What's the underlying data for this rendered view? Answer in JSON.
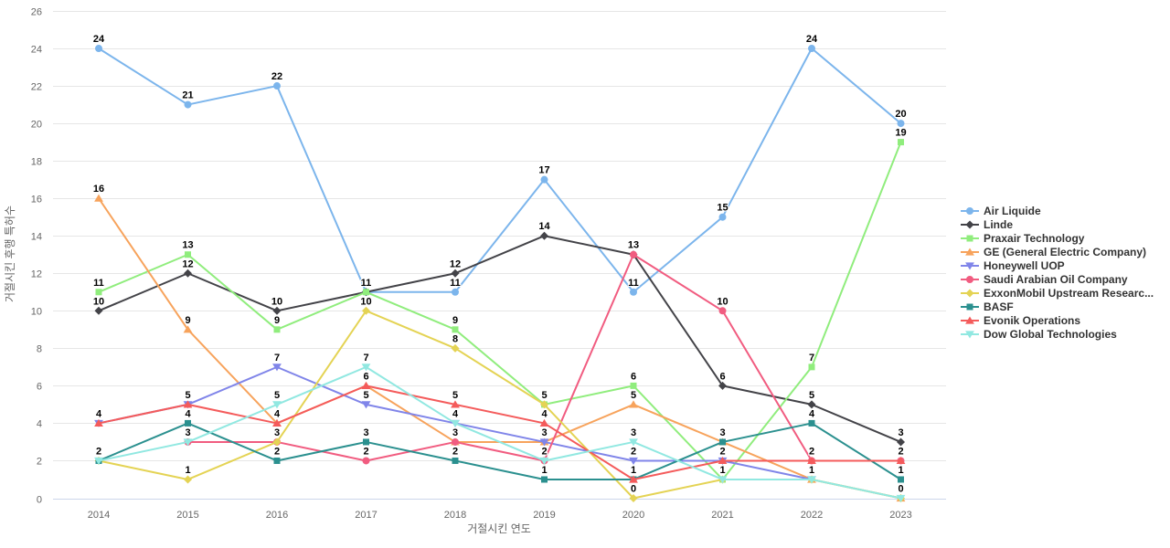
{
  "chart_data": {
    "type": "line",
    "x": [
      "2014",
      "2015",
      "2016",
      "2017",
      "2018",
      "2019",
      "2020",
      "2021",
      "2022",
      "2023"
    ],
    "xlabel": "거절시킨 연도",
    "ylabel": "거절시킨 후행 특허수",
    "ylim": [
      0,
      26
    ],
    "ytick_step": 2,
    "grid": true,
    "legend_position": "right-middle",
    "data_labels": true,
    "series": [
      {
        "name": "Air Liquide",
        "color": "#7cb5ec",
        "marker": "circle",
        "values": [
          24,
          21,
          22,
          11,
          11,
          17,
          11,
          15,
          24,
          20
        ]
      },
      {
        "name": "Linde",
        "color": "#434348",
        "marker": "diamond",
        "values": [
          10,
          12,
          10,
          11,
          12,
          14,
          13,
          6,
          5,
          3
        ]
      },
      {
        "name": "Praxair Technology",
        "color": "#90ed7d",
        "marker": "square",
        "values": [
          11,
          13,
          9,
          11,
          9,
          5,
          6,
          1,
          7,
          19
        ]
      },
      {
        "name": "GE (General Electric Company)",
        "color": "#f7a35c",
        "marker": "triangle",
        "values": [
          16,
          9,
          4,
          6,
          3,
          3,
          5,
          3,
          1,
          0
        ]
      },
      {
        "name": "Honeywell UOP",
        "color": "#8085e9",
        "marker": "triangle-down",
        "values": [
          4,
          5,
          7,
          5,
          4,
          3,
          2,
          2,
          1,
          null
        ]
      },
      {
        "name": "Saudi Arabian Oil Company",
        "color": "#f15c80",
        "marker": "circle",
        "values": [
          null,
          3,
          3,
          2,
          3,
          2,
          13,
          10,
          2,
          2
        ]
      },
      {
        "name": "ExxonMobil Upstream Researc...",
        "color": "#e4d354",
        "marker": "diamond",
        "values": [
          2,
          1,
          3,
          10,
          8,
          5,
          0,
          1,
          1,
          0
        ]
      },
      {
        "name": "BASF",
        "color": "#2b908f",
        "marker": "square",
        "values": [
          2,
          4,
          2,
          3,
          2,
          1,
          1,
          3,
          4,
          1
        ]
      },
      {
        "name": "Evonik Operations",
        "color": "#f45b5b",
        "marker": "triangle",
        "values": [
          4,
          5,
          4,
          6,
          5,
          4,
          1,
          2,
          2,
          2
        ]
      },
      {
        "name": "Dow Global Technologies",
        "color": "#91e8e1",
        "marker": "triangle-down",
        "values": [
          2,
          3,
          5,
          7,
          4,
          2,
          3,
          1,
          1,
          0
        ]
      }
    ]
  }
}
